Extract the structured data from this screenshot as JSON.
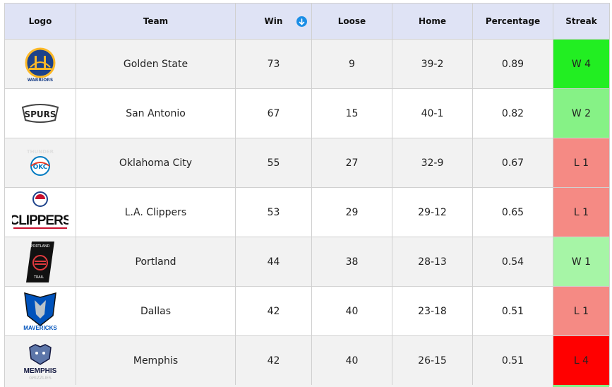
{
  "columns": {
    "logo": "Logo",
    "team": "Team",
    "win": "Win",
    "loose": "Loose",
    "home": "Home",
    "percentage": "Percentage",
    "streak": "Streak"
  },
  "sort": {
    "column": "win",
    "direction": "descending",
    "icon": "arrow-down-circle-icon",
    "color": "#1a8ee6"
  },
  "rows": [
    {
      "logo_icon": "golden-state-warriors-logo",
      "logo_text": "GOLDEN STATE WARRIORS",
      "team": "Golden State",
      "win": "73",
      "loose": "9",
      "home": "39-2",
      "percentage": "0.89",
      "streak": "W 4",
      "streak_color": "#22ee22"
    },
    {
      "logo_icon": "san-antonio-spurs-logo",
      "logo_text": "SPURS",
      "team": "San Antonio",
      "win": "67",
      "loose": "15",
      "home": "40-1",
      "percentage": "0.82",
      "streak": "W 2",
      "streak_color": "#86f286"
    },
    {
      "logo_icon": "oklahoma-city-thunder-logo",
      "logo_text": "THUNDER OKC",
      "team": "Oklahoma City",
      "win": "55",
      "loose": "27",
      "home": "32-9",
      "percentage": "0.67",
      "streak": "L 1",
      "streak_color": "#f58a84"
    },
    {
      "logo_icon": "la-clippers-logo",
      "logo_text": "CLIPPERS",
      "team": "L.A. Clippers",
      "win": "53",
      "loose": "29",
      "home": "29-12",
      "percentage": "0.65",
      "streak": "L 1",
      "streak_color": "#f58a84"
    },
    {
      "logo_icon": "portland-trail-blazers-logo",
      "logo_text": "PORTLAND TRAIL BLAZERS",
      "team": "Portland",
      "win": "44",
      "loose": "38",
      "home": "28-13",
      "percentage": "0.54",
      "streak": "W 1",
      "streak_color": "#a6f5a6"
    },
    {
      "logo_icon": "dallas-mavericks-logo",
      "logo_text": "MAVERICKS",
      "team": "Dallas",
      "win": "42",
      "loose": "40",
      "home": "23-18",
      "percentage": "0.51",
      "streak": "L 1",
      "streak_color": "#f58a84"
    },
    {
      "logo_icon": "memphis-grizzlies-logo",
      "logo_text": "MEMPHIS GRIZZLIES",
      "team": "Memphis",
      "win": "42",
      "loose": "40",
      "home": "26-15",
      "percentage": "0.51",
      "streak": "L 4",
      "streak_color": "#ff0000"
    }
  ],
  "next_row_streak_color": "#86f286"
}
